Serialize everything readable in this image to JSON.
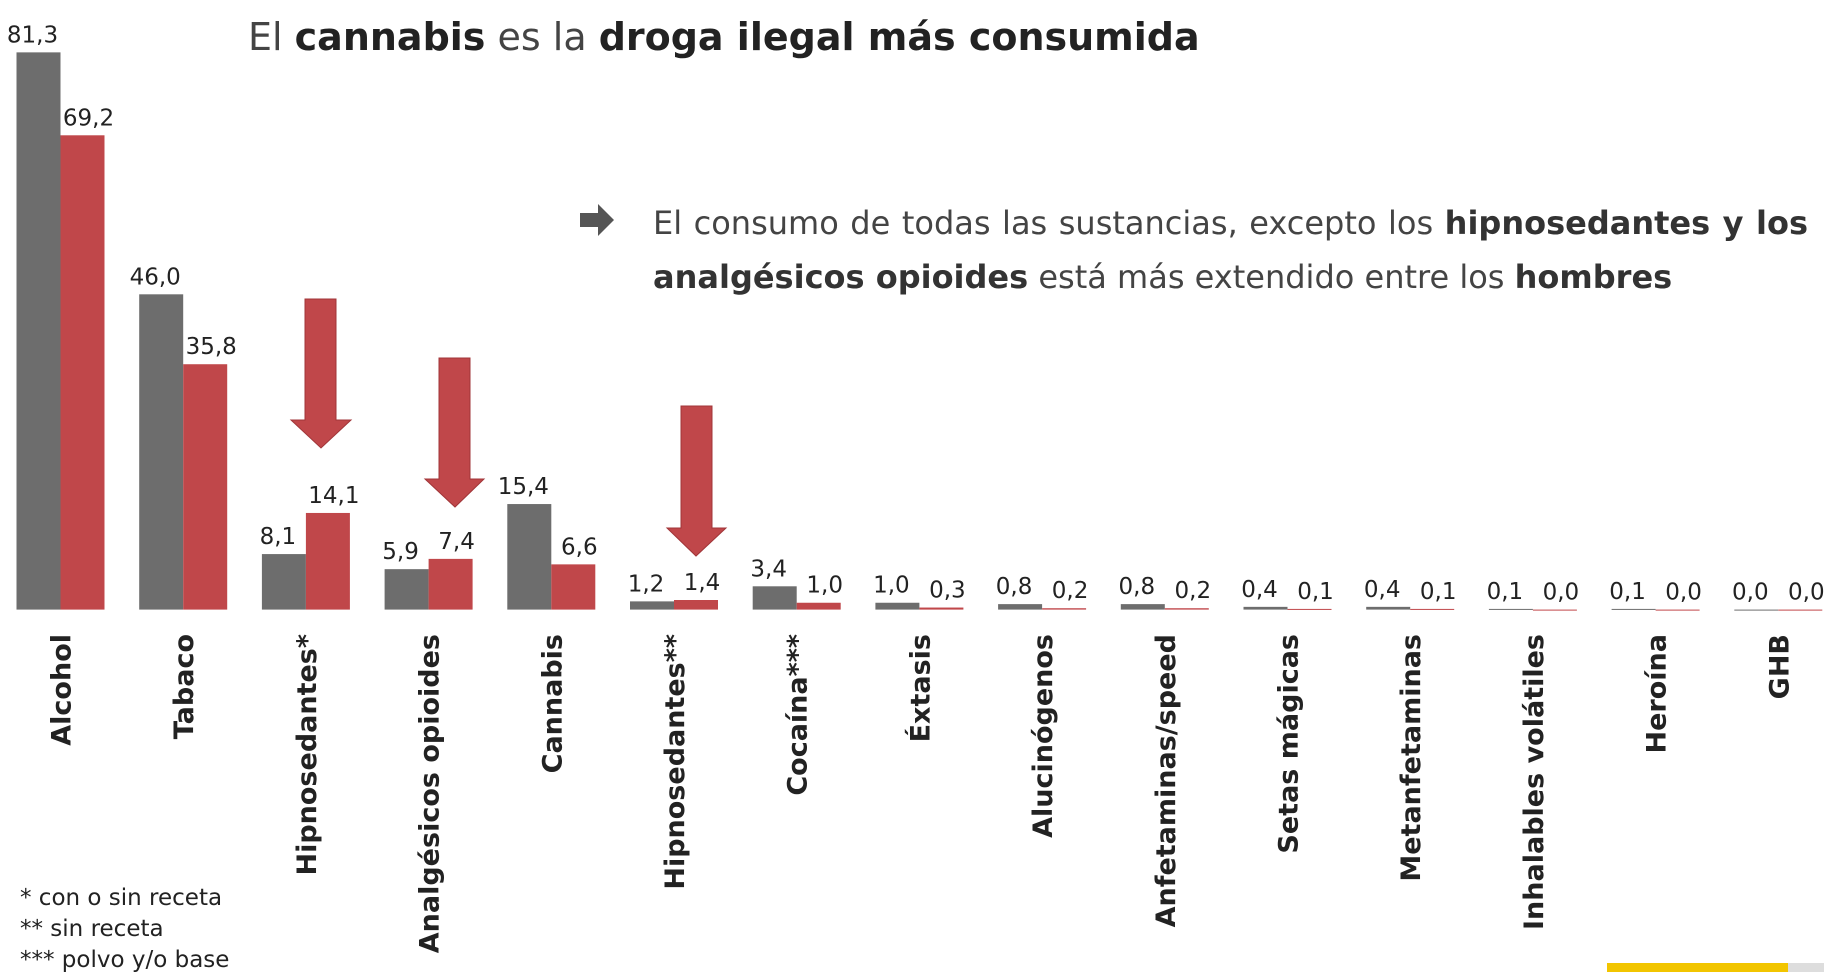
{
  "chart_data": {
    "type": "bar",
    "title": [
      {
        "text": "El ",
        "bold": false
      },
      {
        "text": "cannabis",
        "bold": true
      },
      {
        "text": " es la ",
        "bold": false
      },
      {
        "text": "droga ilegal más consumida",
        "bold": true
      }
    ],
    "annotation": [
      {
        "text": "El consumo de todas las sustancias, excepto los ",
        "bold": false
      },
      {
        "text": "hipnosedantes y los analgésicos opioides",
        "bold": true
      },
      {
        "text": " está más extendido entre los ",
        "bold": false
      },
      {
        "text": "hombres",
        "bold": true
      }
    ],
    "footnotes": [
      "* con o sin receta",
      "** sin receta",
      "*** polvo y/o base"
    ],
    "categories": [
      "Alcohol",
      "Tabaco",
      "Hipnosedantes*",
      "Analgésicos opioides",
      "Cannabis",
      "Hipnosedantes**",
      "Cocaína***",
      "Éxtasis",
      "Alucinógenos",
      "Anfetaminas/speed",
      "Setas mágicas",
      "Metanfetaminas",
      "Inhalables volátiles",
      "Heroína",
      "GHB"
    ],
    "series": [
      {
        "color": "#6d6d6d",
        "values": [
          81.3,
          46.0,
          8.1,
          5.9,
          15.4,
          1.2,
          3.4,
          1.0,
          0.8,
          0.8,
          0.4,
          0.4,
          0.1,
          0.1,
          0.0
        ],
        "value_labels": [
          "81,3",
          "46,0",
          "8,1",
          "5,9",
          "15,4",
          "1,2",
          "3,4",
          "1,0",
          "0,8",
          "0,8",
          "0,4",
          "0,4",
          "0,1",
          "0,1",
          "0,0"
        ]
      },
      {
        "color": "#c0474a",
        "values": [
          69.2,
          35.8,
          14.1,
          7.4,
          6.6,
          1.4,
          1.0,
          0.3,
          0.2,
          0.2,
          0.1,
          0.1,
          0.0,
          0.0,
          0.0
        ],
        "value_labels": [
          "69,2",
          "35,8",
          "14,1",
          "7,4",
          "6,6",
          "1,4",
          "1,0",
          "0,3",
          "0,2",
          "0,2",
          "0,1",
          "0,1",
          "0,0",
          "0,0",
          "0,0"
        ]
      }
    ],
    "ylim": [
      0,
      85
    ]
  }
}
